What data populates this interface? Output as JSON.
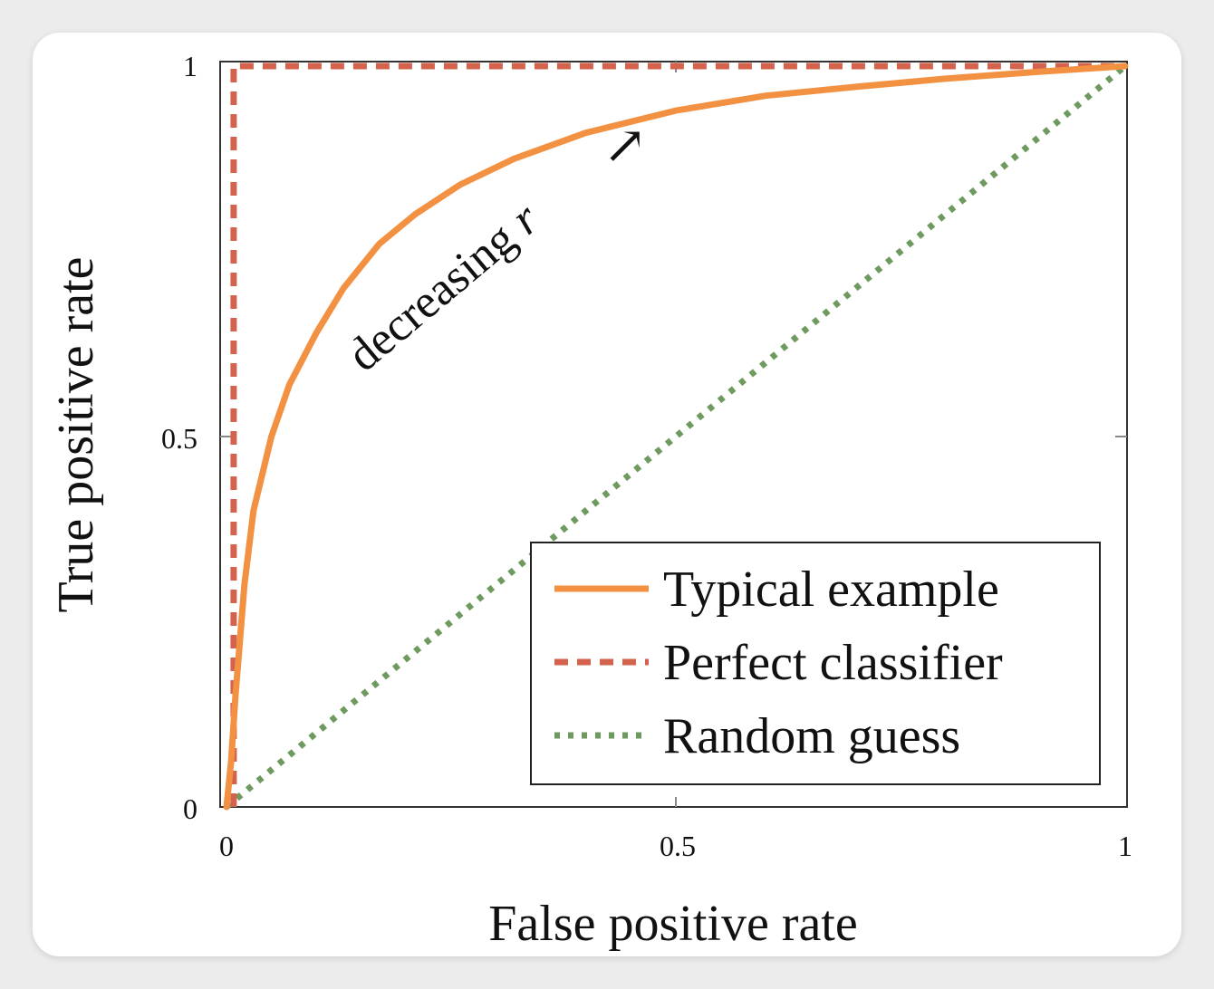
{
  "chart_data": {
    "type": "line",
    "xlabel": "False positive rate",
    "ylabel": "True positive rate",
    "xlim": [
      0,
      1
    ],
    "ylim": [
      0,
      1
    ],
    "xticks": [
      "0",
      "0.5",
      "1"
    ],
    "yticks": [
      "0",
      "0.5",
      "1"
    ],
    "grid": false,
    "legend_position": "bottom-right",
    "annotation": {
      "text": "decreasing ",
      "variable": "r",
      "arrow": "↗"
    },
    "series": [
      {
        "name": "Typical example",
        "style": "solid",
        "color": "#f39142",
        "x": [
          0,
          0.005,
          0.01,
          0.02,
          0.03,
          0.05,
          0.07,
          0.1,
          0.13,
          0.17,
          0.21,
          0.26,
          0.32,
          0.4,
          0.5,
          0.6,
          0.7,
          0.8,
          0.9,
          1.0
        ],
        "y": [
          0,
          0.06,
          0.15,
          0.3,
          0.4,
          0.5,
          0.57,
          0.64,
          0.7,
          0.76,
          0.8,
          0.84,
          0.875,
          0.91,
          0.94,
          0.96,
          0.972,
          0.983,
          0.992,
          1.0
        ]
      },
      {
        "name": "Perfect classifier",
        "style": "dashed",
        "color": "#d4634e",
        "x": [
          0.008,
          0.008,
          1.0
        ],
        "y": [
          0,
          1.0,
          1.0
        ]
      },
      {
        "name": "Random guess",
        "style": "dotted",
        "color": "#6f9a5f",
        "x": [
          0,
          1.0
        ],
        "y": [
          0,
          1.0
        ]
      }
    ]
  }
}
